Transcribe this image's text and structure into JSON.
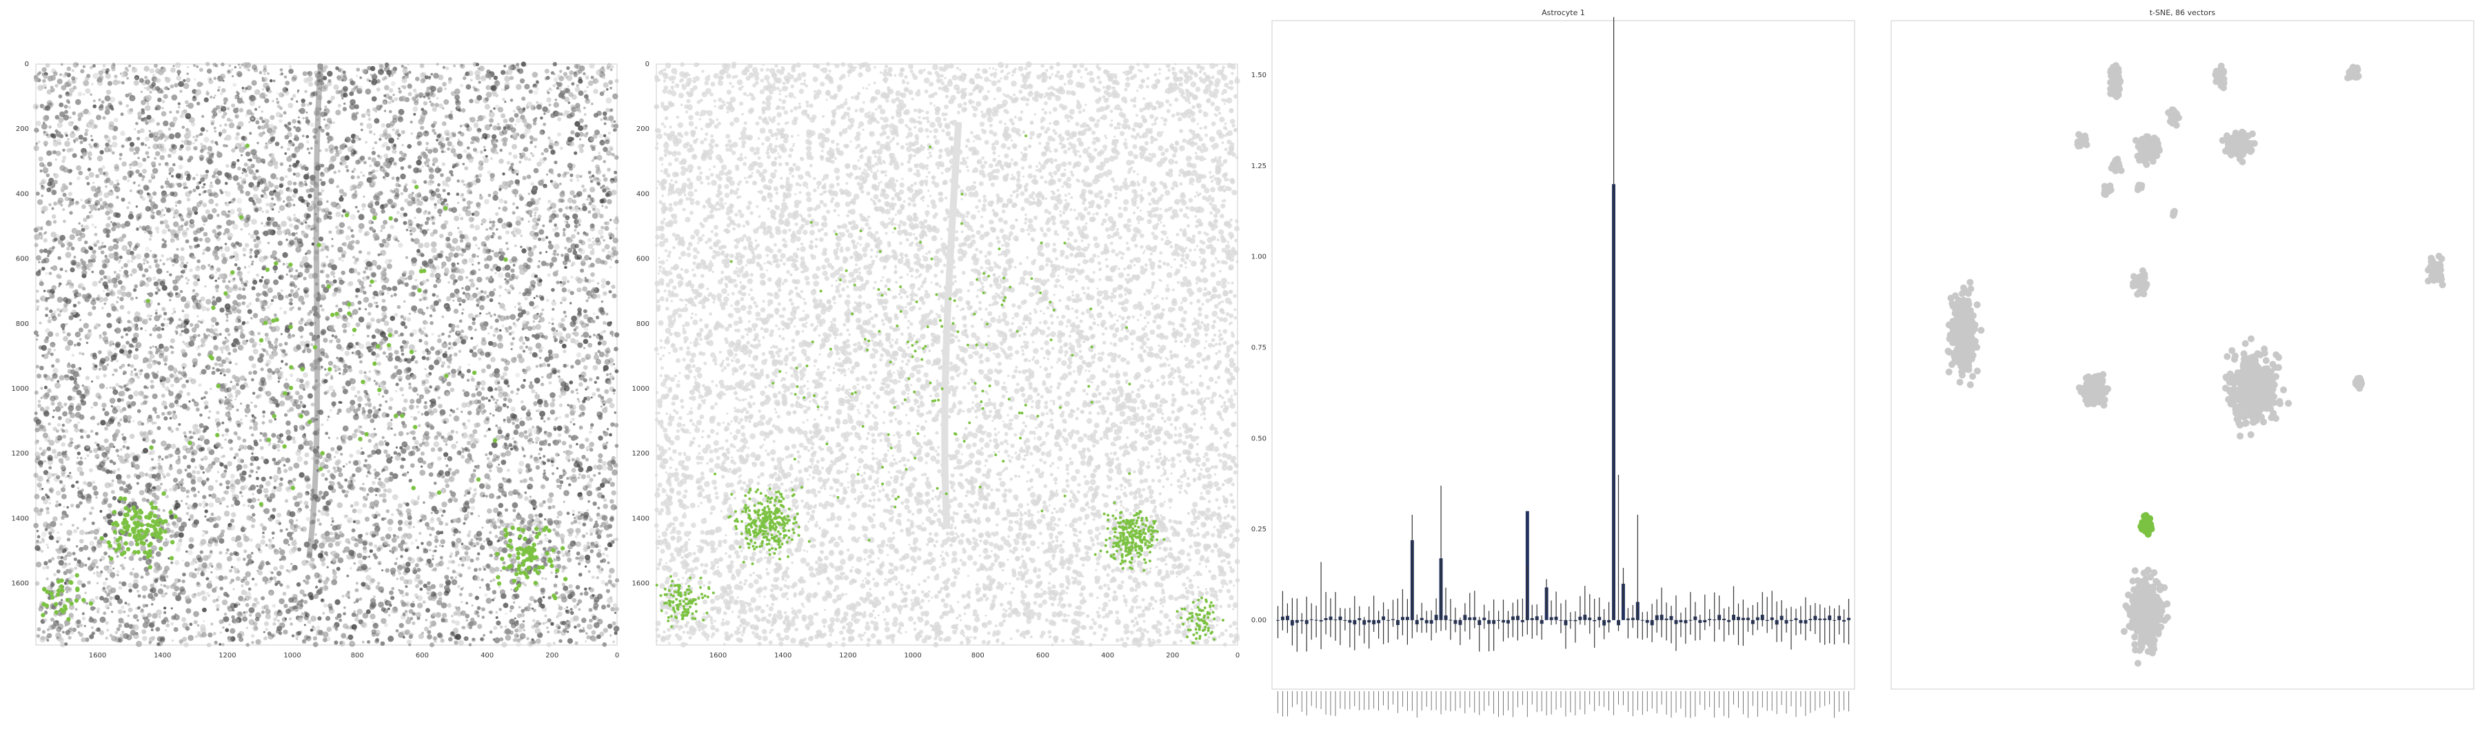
{
  "chart_data": [
    {
      "type": "scatter",
      "title": "",
      "xlabel": "",
      "ylabel": "",
      "x_ticks": [
        "1600",
        "1400",
        "1200",
        "1000",
        "800",
        "600",
        "400",
        "200",
        "0"
      ],
      "y_ticks": [
        "0",
        "200",
        "400",
        "600",
        "800",
        "1000",
        "1200",
        "1400",
        "1600"
      ],
      "xlim": [
        1790,
        0
      ],
      "ylim": [
        1790,
        0
      ],
      "background": "grayscale tissue section image",
      "highlight_color": "#7cc242",
      "highlight_clusters": [
        {
          "x": 1470,
          "y": 1440,
          "spread": 160,
          "n": 120
        },
        {
          "x": 280,
          "y": 1520,
          "spread": 180,
          "n": 80
        },
        {
          "x": 1700,
          "y": 1650,
          "spread": 120,
          "n": 30
        },
        {
          "x": 900,
          "y": 900,
          "spread": 900,
          "n": 70
        }
      ]
    },
    {
      "type": "scatter",
      "title": "",
      "xlabel": "",
      "ylabel": "",
      "x_ticks": [
        "1600",
        "1400",
        "1200",
        "1000",
        "800",
        "600",
        "400",
        "200",
        "0"
      ],
      "y_ticks": [
        "0",
        "200",
        "400",
        "600",
        "800",
        "1000",
        "1200",
        "1400",
        "1600"
      ],
      "xlim": [
        1790,
        0
      ],
      "ylim": [
        1790,
        0
      ],
      "background_color": "#d9d9d9",
      "highlight_color": "#7cc242",
      "highlight_clusters": [
        {
          "x": 1450,
          "y": 1410,
          "spread": 150,
          "n": 300
        },
        {
          "x": 330,
          "y": 1460,
          "spread": 140,
          "n": 260
        },
        {
          "x": 1710,
          "y": 1660,
          "spread": 120,
          "n": 120
        },
        {
          "x": 120,
          "y": 1720,
          "spread": 110,
          "n": 80
        },
        {
          "x": 900,
          "y": 900,
          "spread": 900,
          "n": 140
        }
      ]
    },
    {
      "type": "bar",
      "title": "Astrocyte 1",
      "xlabel": "",
      "ylabel": "",
      "y_ticks": [
        "0.00",
        "0.25",
        "0.50",
        "0.75",
        "1.00",
        "1.25",
        "1.50"
      ],
      "ylim": [
        -0.19,
        1.65
      ],
      "bar_color": "#23325e",
      "n_genes": 120,
      "highlights": [
        {
          "index": 28,
          "value": 0.22
        },
        {
          "index": 34,
          "value": 0.17
        },
        {
          "index": 52,
          "value": 0.3
        },
        {
          "index": 56,
          "value": 0.09
        },
        {
          "index": 70,
          "value": 1.2
        },
        {
          "index": 72,
          "value": 0.1
        },
        {
          "index": 75,
          "value": 0.05
        }
      ],
      "error_bars": {
        "28": [
          -0.05,
          0.29
        ],
        "34": [
          -0.03,
          0.37
        ],
        "70": [
          0.0,
          1.66
        ],
        "71": [
          -0.03,
          0.4
        ],
        "75": [
          -0.05,
          0.29
        ],
        "9": [
          -0.08,
          0.16
        ],
        "52": [
          -0.04,
          0.15
        ]
      }
    },
    {
      "type": "scatter",
      "title": "t-SNE, 86 vectors",
      "xlabel": "",
      "ylabel": "",
      "point_color": "#c8c8c8",
      "highlight_color": "#7cc242",
      "clusters": [
        {
          "cx": 325,
          "cy": 90,
          "rx": 14,
          "ry": 42,
          "n": 60
        },
        {
          "cx": 477,
          "cy": 80,
          "rx": 11,
          "ry": 22,
          "n": 30
        },
        {
          "cx": 672,
          "cy": 75,
          "rx": 15,
          "ry": 15,
          "n": 35
        },
        {
          "cx": 373,
          "cy": 188,
          "rx": 25,
          "ry": 30,
          "n": 110
        },
        {
          "cx": 505,
          "cy": 180,
          "rx": 30,
          "ry": 30,
          "n": 120
        },
        {
          "cx": 410,
          "cy": 138,
          "rx": 12,
          "ry": 20,
          "n": 30
        },
        {
          "cx": 278,
          "cy": 175,
          "rx": 13,
          "ry": 14,
          "n": 30
        },
        {
          "cx": 327,
          "cy": 210,
          "rx": 11,
          "ry": 12,
          "n": 25
        },
        {
          "cx": 313,
          "cy": 246,
          "rx": 10,
          "ry": 11,
          "n": 20
        },
        {
          "cx": 360,
          "cy": 242,
          "rx": 6,
          "ry": 8,
          "n": 10
        },
        {
          "cx": 410,
          "cy": 278,
          "rx": 3,
          "ry": 6,
          "n": 5
        },
        {
          "cx": 362,
          "cy": 380,
          "rx": 17,
          "ry": 30,
          "n": 40
        },
        {
          "cx": 790,
          "cy": 360,
          "rx": 18,
          "ry": 28,
          "n": 45
        },
        {
          "cx": 105,
          "cy": 455,
          "rx": 32,
          "ry": 95,
          "n": 260
        },
        {
          "cx": 297,
          "cy": 535,
          "rx": 30,
          "ry": 38,
          "n": 120
        },
        {
          "cx": 525,
          "cy": 535,
          "rx": 58,
          "ry": 80,
          "n": 450
        },
        {
          "cx": 678,
          "cy": 525,
          "rx": 12,
          "ry": 13,
          "n": 25
        },
        {
          "cx": 370,
          "cy": 860,
          "rx": 42,
          "ry": 88,
          "n": 320
        }
      ],
      "highlight_cluster": {
        "cx": 370,
        "cy": 730,
        "rx": 13,
        "ry": 19,
        "n": 50
      }
    }
  ]
}
